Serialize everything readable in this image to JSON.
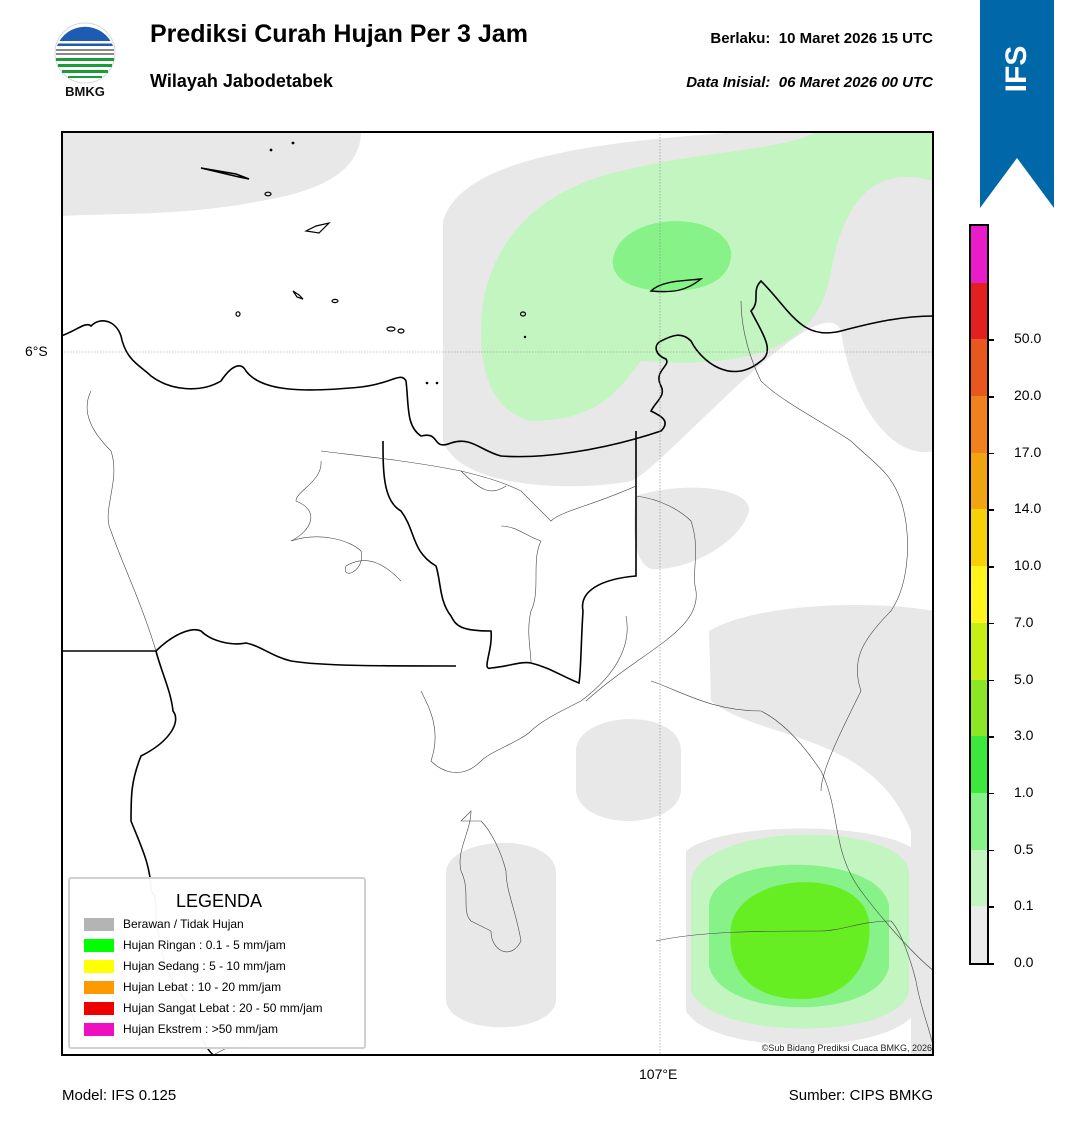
{
  "header": {
    "title": "Prediksi Curah Hujan Per 3 Jam",
    "subtitle": "Wilayah Jabodetabek",
    "valid_label": "Berlaku:",
    "valid_value": "10 Maret 2026 15 UTC",
    "init_label": "Data Inisial:",
    "init_value": "06 Maret 2026 00 UTC"
  },
  "logo": {
    "text": "BMKG",
    "icon": "bmkg-logo-icon"
  },
  "banner": {
    "text": "IFS",
    "color": "#0068a8",
    "icon": "up-chevron-icon"
  },
  "map": {
    "lat_label": "6°S",
    "lon_label": "107°E",
    "copyright": "©Sub Bidang Prediksi Cuaca BMKG, 2026"
  },
  "legend": {
    "title": "LEGENDA",
    "items": [
      {
        "label": "Berawan / Tidak Hujan",
        "color": "#b4b4b4"
      },
      {
        "label": "Hujan Ringan : 0.1 - 5 mm/jam",
        "color": "#00ff00"
      },
      {
        "label": "Hujan Sedang : 5 - 10 mm/jam",
        "color": "#ffff00"
      },
      {
        "label": "Hujan Lebat : 10 - 20 mm/jam",
        "color": "#ff9900"
      },
      {
        "label": "Hujan Sangat Lebat : 20 - 50 mm/jam",
        "color": "#ee0000"
      },
      {
        "label": "Hujan Ekstrem : >50 mm/jam",
        "color": "#ee10c0"
      }
    ]
  },
  "colorbar": {
    "labels": [
      "0.0",
      "0.1",
      "0.5",
      "1.0",
      "3.0",
      "5.0",
      "7.0",
      "10.0",
      "14.0",
      "17.0",
      "20.0",
      "50.0"
    ],
    "colors": [
      "#ebebeb",
      "#c2f5c0",
      "#86f287",
      "#3de83d",
      "#8ce626",
      "#c8ee18",
      "#fff41e",
      "#f7d00a",
      "#f0a412",
      "#f0821e",
      "#e8581e",
      "#e22020",
      "#e81cc8"
    ]
  },
  "footer": {
    "model": "Model: IFS 0.125",
    "source": "Sumber: CIPS BMKG"
  }
}
